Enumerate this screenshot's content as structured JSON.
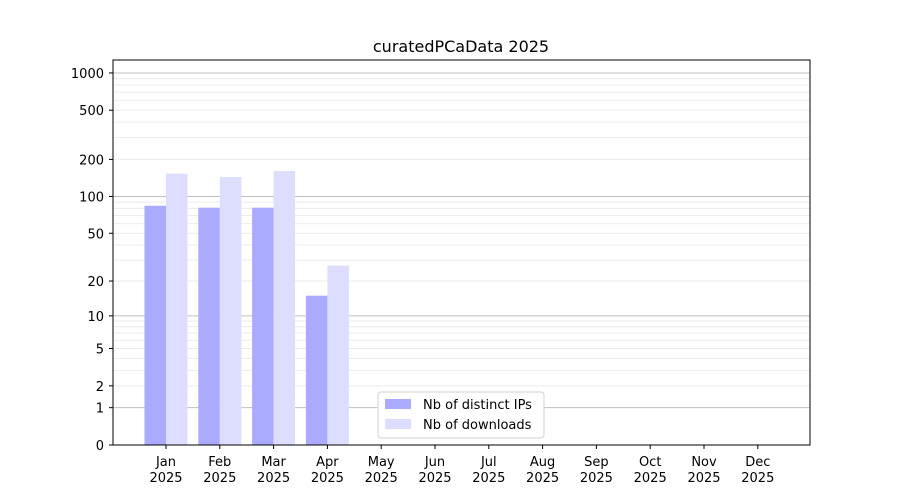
{
  "chart_data": {
    "type": "bar",
    "title": "curatedPCaData 2025",
    "xlabel": "",
    "ylabel": "",
    "yscale": "log(x+1)",
    "ylim": [
      0,
      1300
    ],
    "yticks": [
      0,
      1,
      2,
      5,
      10,
      20,
      50,
      100,
      200,
      500,
      1000
    ],
    "grid": true,
    "categories": [
      "Jan\n2025",
      "Feb\n2025",
      "Mar\n2025",
      "Apr\n2025",
      "May\n2025",
      "Jun\n2025",
      "Jul\n2025",
      "Aug\n2025",
      "Sep\n2025",
      "Oct\n2025",
      "Nov\n2025",
      "Dec\n2025"
    ],
    "series": [
      {
        "name": "Nb of distinct IPs",
        "color": "#aaaaff",
        "values": [
          84,
          81,
          81,
          15,
          0,
          0,
          0,
          0,
          0,
          0,
          0,
          0
        ]
      },
      {
        "name": "Nb of downloads",
        "color": "#ddddff",
        "values": [
          153,
          144,
          161,
          27,
          0,
          0,
          0,
          0,
          0,
          0,
          0,
          0
        ]
      }
    ],
    "legend": "lower-center"
  }
}
